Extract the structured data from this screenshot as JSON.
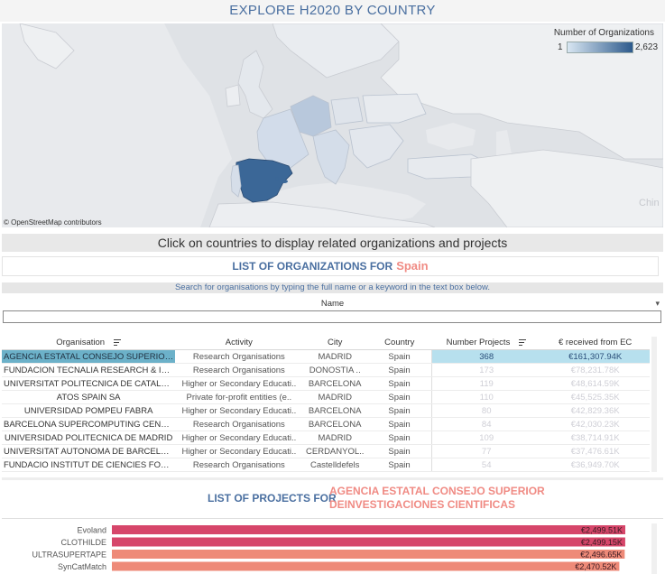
{
  "title": "EXPLORE H2020 BY COUNTRY",
  "map": {
    "legend_title": "Number of Organizations",
    "legend_min": "1",
    "legend_max": "2,623",
    "attribution": "© OpenStreetMap contributors",
    "corner_label": "Chin",
    "highlight_color": "#3b6797",
    "selected_country": "Spain"
  },
  "instruction": "Click on countries to display related organizations and projects",
  "orgs_section": {
    "label": "LIST OF ORGANIZATIONS FOR",
    "country": "Spain"
  },
  "search": {
    "hint": "Search for organisations by typing the full name or a keyword in the text box below.",
    "field_label": "Name",
    "value": ""
  },
  "table": {
    "headers": [
      "Organisation",
      "Activity",
      "City",
      "Country",
      "Number Projects",
      "€ received from  EC"
    ],
    "rows": [
      {
        "org": "AGENCIA ESTATAL CONSEJO SUPERIOR D..",
        "activity": "Research Organisations",
        "city": "MADRID",
        "country": "Spain",
        "projects": "368",
        "ec": "€161,307.94K"
      },
      {
        "org": "FUNDACION TECNALIA RESEARCH & INN..",
        "activity": "Research Organisations",
        "city": "DONOSTIA ..",
        "country": "Spain",
        "projects": "173",
        "ec": "€78,231.78K"
      },
      {
        "org": "UNIVERSITAT POLITECNICA DE CATALUN..",
        "activity": "Higher or Secondary Educati..",
        "city": "BARCELONA",
        "country": "Spain",
        "projects": "119",
        "ec": "€48,614.59K"
      },
      {
        "org": "ATOS SPAIN SA",
        "activity": "Private for-profit entities (e..",
        "city": "MADRID",
        "country": "Spain",
        "projects": "110",
        "ec": "€45,525.35K"
      },
      {
        "org": "UNIVERSIDAD POMPEU FABRA",
        "activity": "Higher or Secondary Educati..",
        "city": "BARCELONA",
        "country": "Spain",
        "projects": "80",
        "ec": "€42,829.36K"
      },
      {
        "org": "BARCELONA SUPERCOMPUTING CENTER ..",
        "activity": "Research Organisations",
        "city": "BARCELONA",
        "country": "Spain",
        "projects": "84",
        "ec": "€42,030.23K"
      },
      {
        "org": "UNIVERSIDAD POLITECNICA DE MADRID",
        "activity": "Higher or Secondary Educati..",
        "city": "MADRID",
        "country": "Spain",
        "projects": "109",
        "ec": "€38,714.91K"
      },
      {
        "org": "UNIVERSITAT AUTONOMA DE BARCELONA",
        "activity": "Higher or Secondary Educati..",
        "city": "CERDANYOL..",
        "country": "Spain",
        "projects": "77",
        "ec": "€37,476.61K"
      },
      {
        "org": "FUNDACIO INSTITUT DE CIENCIES FOTON..",
        "activity": "Research Organisations",
        "city": "Castelldefels",
        "country": "Spain",
        "projects": "54",
        "ec": "€36,949.70K"
      }
    ]
  },
  "projects_section": {
    "label": "LIST OF PROJECTS FOR",
    "org": "AGENCIA ESTATAL CONSEJO SUPERIOR DEINVESTIGACIONES CIENTIFICAS"
  },
  "chart_data": {
    "type": "bar",
    "orientation": "horizontal",
    "categories": [
      "Evoland",
      "CLOTHILDE",
      "ULTRASUPERTAPE",
      "SynCatMatch"
    ],
    "values": [
      2499.51,
      2499.15,
      2496.65,
      2470.52
    ],
    "value_labels": [
      "€2,499.51K",
      "€2,499.15K",
      "€2,496.65K",
      "€2,470.52K"
    ],
    "colors": [
      "#d6466a",
      "#d6466a",
      "#ee8a78",
      "#ee8a78"
    ]
  }
}
